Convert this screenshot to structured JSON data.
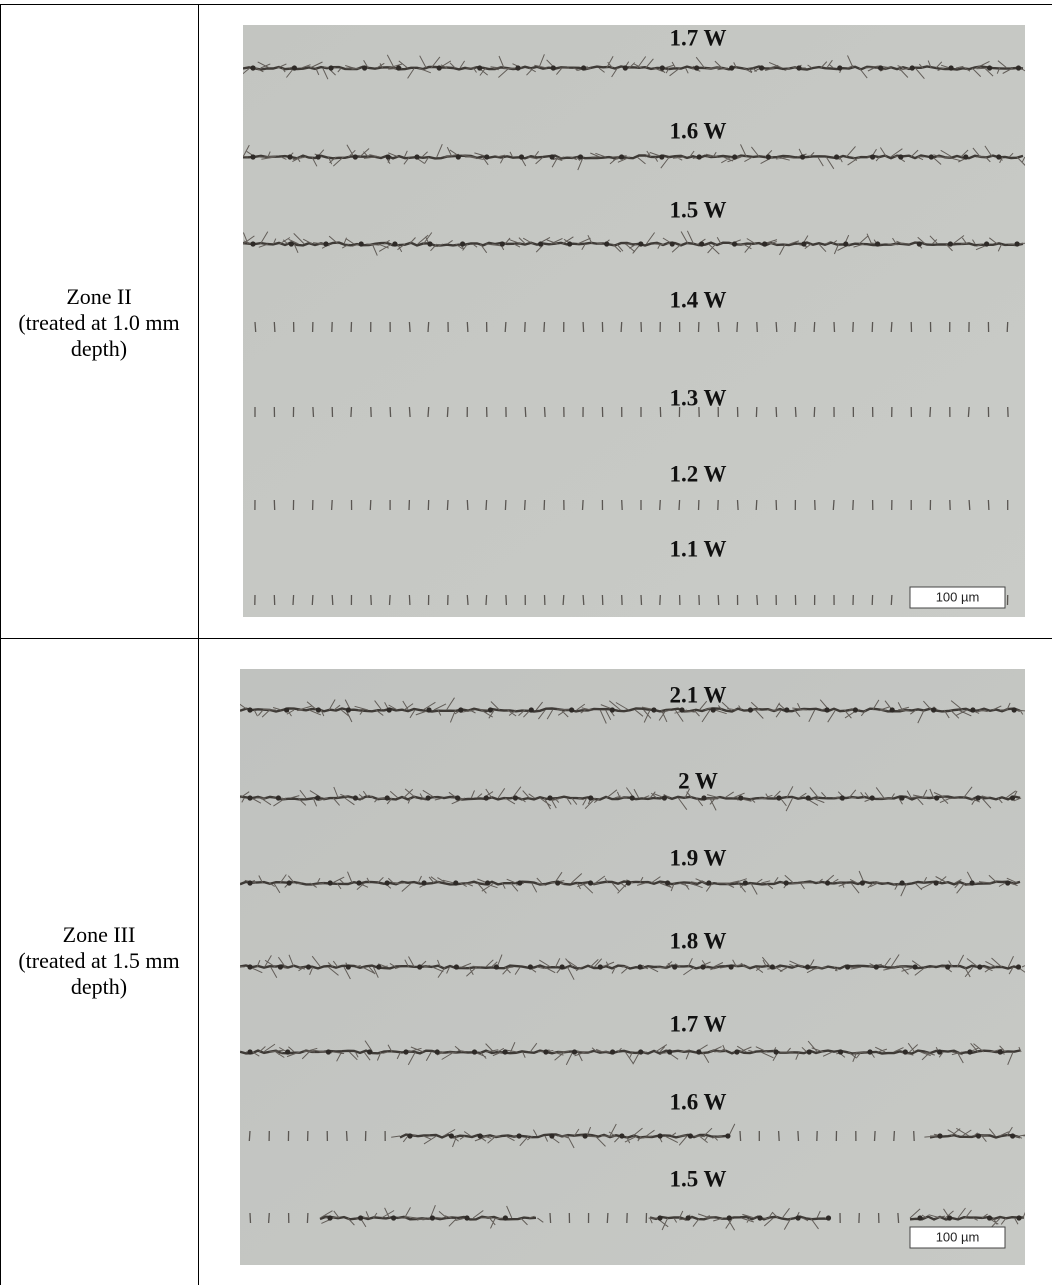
{
  "rows": [
    {
      "zone": "Zone II",
      "description": "(treated at 1.0 mm depth)",
      "labels": [
        "1.7 W",
        "1.6 W",
        "1.5 W",
        "1.4 W",
        "1.3 W",
        "1.2 W",
        "1.1 W"
      ],
      "scale_bar": "100 µm"
    },
    {
      "zone": "Zone III",
      "description": "(treated at 1.5 mm depth)",
      "labels": [
        "2.1 W",
        "2 W",
        "1.9 W",
        "1.8 W",
        "1.7 W",
        "1.6 W",
        "1.5 W"
      ],
      "scale_bar": "100 µm"
    }
  ]
}
